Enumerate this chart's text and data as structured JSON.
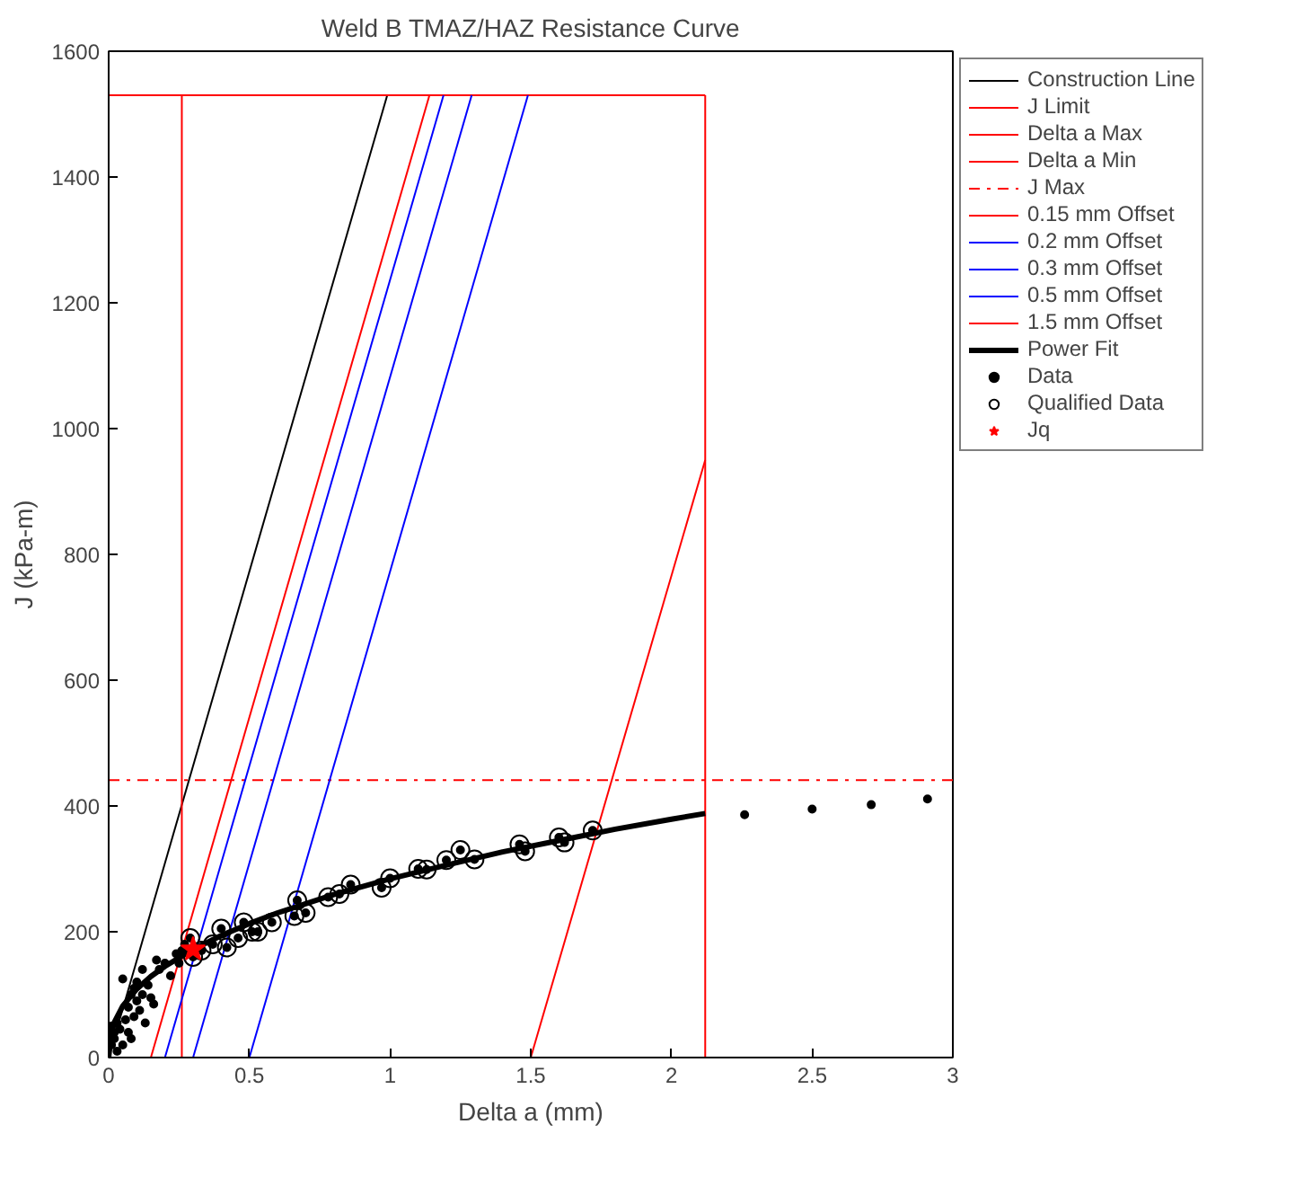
{
  "chart_data": {
    "type": "line",
    "title": "Weld B TMAZ/HAZ Resistance Curve",
    "xlabel": "Delta a (mm)",
    "ylabel": "J (kPa-m)",
    "xlim": [
      0,
      3
    ],
    "ylim": [
      0,
      1600
    ],
    "xticks": [
      0,
      0.5,
      1,
      1.5,
      2,
      2.5,
      3
    ],
    "yticks": [
      0,
      200,
      400,
      600,
      800,
      1000,
      1200,
      1400,
      1600
    ],
    "grid": false,
    "legend": "right",
    "series": [
      {
        "name": "Construction Line",
        "type": "line",
        "color": "#000000",
        "line_style": "solid",
        "x": [
          0,
          0.99
        ],
        "values": [
          0,
          1530
        ]
      },
      {
        "name": "J Limit",
        "type": "line",
        "color": "#ff0000",
        "line_style": "solid",
        "x": [
          0,
          2.12
        ],
        "values": [
          1530,
          1530
        ]
      },
      {
        "name": "Delta a Max",
        "type": "line",
        "color": "#ff0000",
        "line_style": "solid",
        "x": [
          2.12,
          2.12
        ],
        "values": [
          0,
          1530
        ]
      },
      {
        "name": "Delta a Min",
        "type": "line",
        "color": "#ff0000",
        "line_style": "solid",
        "x": [
          0.26,
          0.26
        ],
        "values": [
          0,
          1530
        ]
      },
      {
        "name": "J Max",
        "type": "line",
        "color": "#ff0000",
        "line_style": "dashdot",
        "x": [
          0,
          3
        ],
        "values": [
          441,
          441
        ]
      },
      {
        "name": "0.15 mm Offset",
        "type": "line",
        "color": "#ff0000",
        "line_style": "solid",
        "x": [
          0.15,
          1.14
        ],
        "values": [
          0,
          1530
        ]
      },
      {
        "name": "0.2 mm Offset",
        "type": "line",
        "color": "#0000ff",
        "line_style": "solid",
        "x": [
          0.2,
          1.19
        ],
        "values": [
          0,
          1530
        ]
      },
      {
        "name": "0.3 mm Offset",
        "type": "line",
        "color": "#0000ff",
        "line_style": "solid",
        "x": [
          0.3,
          1.29
        ],
        "values": [
          0,
          1530
        ]
      },
      {
        "name": "0.5 mm Offset",
        "type": "line",
        "color": "#0000ff",
        "line_style": "solid",
        "x": [
          0.5,
          1.49
        ],
        "values": [
          0,
          1530
        ]
      },
      {
        "name": "1.5 mm Offset",
        "type": "line",
        "color": "#ff0000",
        "line_style": "solid",
        "x": [
          1.5,
          2.12
        ],
        "values": [
          0,
          950
        ]
      },
      {
        "name": "Power Fit",
        "type": "line",
        "color": "#000000",
        "line_style": "solid",
        "x": [
          0,
          0.01,
          0.02,
          0.05,
          0.1,
          0.15,
          0.2,
          0.3,
          0.4,
          0.5,
          0.6,
          0.8,
          1.0,
          1.2,
          1.4,
          1.6,
          1.8,
          2.0,
          2.12
        ],
        "values": [
          0,
          42,
          56,
          82,
          109,
          129,
          145,
          172,
          194,
          213,
          230,
          259,
          284,
          306,
          327,
          345,
          363,
          379,
          388
        ]
      },
      {
        "name": "Data",
        "type": "scatter",
        "marker": "circle",
        "color": "#000000",
        "x": [
          0.01,
          0.01,
          0.02,
          0.02,
          0.03,
          0.03,
          0.04,
          0.05,
          0.05,
          0.06,
          0.07,
          0.07,
          0.08,
          0.08,
          0.09,
          0.09,
          0.1,
          0.1,
          0.11,
          0.12,
          0.12,
          0.13,
          0.14,
          0.15,
          0.16,
          0.17,
          0.18,
          0.2,
          0.22,
          0.24,
          0.25,
          0.26,
          0.27,
          0.29,
          0.3,
          0.33,
          0.37,
          0.4,
          0.42,
          0.46,
          0.48,
          0.51,
          0.53,
          0.58,
          0.66,
          0.67,
          0.7,
          0.78,
          0.82,
          0.86,
          0.97,
          1.0,
          1.1,
          1.13,
          1.2,
          1.25,
          1.3,
          1.46,
          1.48,
          1.6,
          1.62,
          1.72,
          2.26,
          2.5,
          2.71,
          2.91
        ],
        "values": [
          20,
          50,
          40,
          30,
          10,
          55,
          45,
          20,
          125,
          60,
          40,
          80,
          100,
          30,
          110,
          65,
          90,
          120,
          75,
          140,
          100,
          55,
          115,
          95,
          85,
          155,
          140,
          150,
          130,
          165,
          150,
          170,
          180,
          190,
          160,
          170,
          180,
          205,
          175,
          190,
          215,
          200,
          200,
          215,
          225,
          250,
          230,
          255,
          260,
          275,
          270,
          285,
          300,
          299,
          314,
          330,
          315,
          339,
          328,
          350,
          342,
          361,
          386,
          395,
          402,
          411
        ]
      },
      {
        "name": "Qualified Data",
        "type": "scatter",
        "marker": "circle",
        "color": "#000000",
        "x": [
          0.29,
          0.3,
          0.33,
          0.37,
          0.4,
          0.42,
          0.46,
          0.48,
          0.51,
          0.53,
          0.58,
          0.66,
          0.67,
          0.7,
          0.78,
          0.82,
          0.86,
          0.97,
          1.0,
          1.1,
          1.13,
          1.2,
          1.25,
          1.3,
          1.46,
          1.48,
          1.6,
          1.62,
          1.72
        ],
        "values": [
          190,
          160,
          170,
          180,
          205,
          175,
          190,
          215,
          200,
          200,
          215,
          225,
          250,
          230,
          255,
          260,
          275,
          270,
          285,
          300,
          299,
          314,
          330,
          315,
          339,
          328,
          350,
          342,
          361
        ]
      },
      {
        "name": "Jq",
        "type": "scatter",
        "marker": "star",
        "color": "#ff0000",
        "x": [
          0.3
        ],
        "values": [
          172
        ]
      }
    ]
  }
}
